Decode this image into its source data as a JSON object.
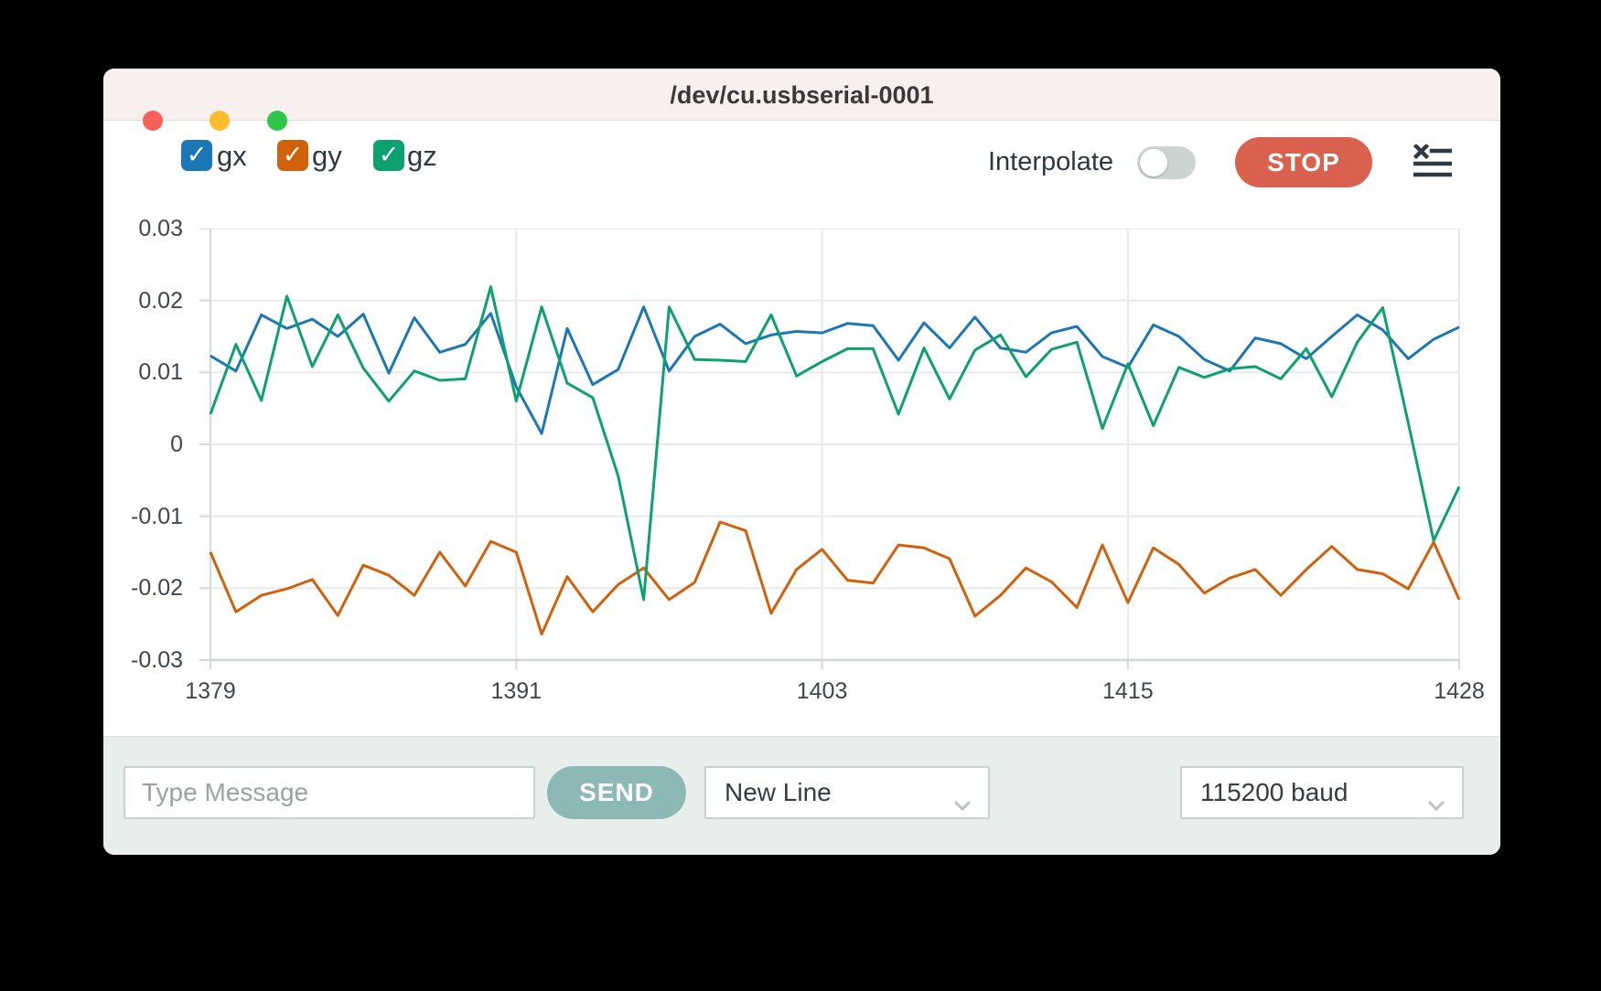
{
  "window": {
    "title": "/dev/cu.usbserial-0001"
  },
  "traffic_lights": [
    "close",
    "minimize",
    "zoom"
  ],
  "legend": [
    {
      "label": "gx",
      "color": "#1b77b5",
      "checked": true
    },
    {
      "label": "gy",
      "color": "#d2610c",
      "checked": true
    },
    {
      "label": "gz",
      "color": "#0ca16e",
      "checked": true
    }
  ],
  "toolbar": {
    "interpolate_label": "Interpolate",
    "interpolate_on": false,
    "stop_label": "STOP",
    "clear_icon": "clear-list-icon"
  },
  "chart_data": {
    "type": "line",
    "xlim": [
      1379,
      1428
    ],
    "ylim": [
      -0.03,
      0.03
    ],
    "grid": true,
    "legend_position": "top-left",
    "x_tick_values": [
      1379,
      1391,
      1403,
      1415,
      1428
    ],
    "x_tick_labels": [
      "1379",
      "1391",
      "1403",
      "1415",
      "1428"
    ],
    "y_tick_values": [
      0.03,
      0.02,
      0.01,
      0,
      -0.01,
      -0.02,
      -0.03
    ],
    "y_tick_labels": [
      "0.03",
      "0.02",
      "0.01",
      "0",
      "-0.01",
      "-0.02",
      "-0.03"
    ],
    "x_start": 1379,
    "x_step": 1,
    "series": [
      {
        "name": "gx",
        "color": "#1b77b5",
        "values": [
          0.0123,
          0.0102,
          0.018,
          0.0161,
          0.0174,
          0.015,
          0.0181,
          0.0099,
          0.0176,
          0.0128,
          0.0139,
          0.0182,
          0.008,
          0.0015,
          0.0161,
          0.0083,
          0.0104,
          0.0191,
          0.0102,
          0.015,
          0.0167,
          0.014,
          0.0152,
          0.0157,
          0.0155,
          0.0168,
          0.0165,
          0.0117,
          0.0169,
          0.0134,
          0.0177,
          0.0134,
          0.0128,
          0.0155,
          0.0164,
          0.0122,
          0.0107,
          0.0166,
          0.015,
          0.0118,
          0.0102,
          0.0148,
          0.014,
          0.0119,
          0.015,
          0.018,
          0.0159,
          0.0119,
          0.0146,
          0.0163
        ]
      },
      {
        "name": "gy",
        "color": "#d2610c",
        "values": [
          -0.015,
          -0.0233,
          -0.021,
          -0.0201,
          -0.0188,
          -0.0238,
          -0.0168,
          -0.0182,
          -0.021,
          -0.015,
          -0.0197,
          -0.0135,
          -0.015,
          -0.0264,
          -0.0184,
          -0.0233,
          -0.0195,
          -0.0172,
          -0.0216,
          -0.0192,
          -0.0108,
          -0.012,
          -0.0235,
          -0.0174,
          -0.0146,
          -0.0189,
          -0.0193,
          -0.014,
          -0.0144,
          -0.0159,
          -0.0239,
          -0.021,
          -0.0172,
          -0.0191,
          -0.0227,
          -0.014,
          -0.022,
          -0.0144,
          -0.0167,
          -0.0207,
          -0.0186,
          -0.0174,
          -0.021,
          -0.0174,
          -0.0142,
          -0.0174,
          -0.018,
          -0.0201,
          -0.0136,
          -0.0216
        ]
      },
      {
        "name": "gz",
        "color": "#0ca16e",
        "values": [
          0.0042,
          0.0139,
          0.0061,
          0.0206,
          0.0108,
          0.018,
          0.0106,
          0.006,
          0.0102,
          0.0089,
          0.0091,
          0.0219,
          0.006,
          0.0191,
          0.0085,
          0.0065,
          -0.0044,
          -0.0216,
          0.0191,
          0.0118,
          0.0117,
          0.0115,
          0.018,
          0.0095,
          0.0115,
          0.0133,
          0.0133,
          0.0042,
          0.0134,
          0.0063,
          0.0131,
          0.0152,
          0.0094,
          0.0132,
          0.0142,
          0.0022,
          0.0112,
          0.0026,
          0.0107,
          0.0093,
          0.0105,
          0.0108,
          0.0091,
          0.0133,
          0.0066,
          0.0142,
          0.019,
          0.003,
          -0.0134,
          -0.0059
        ]
      }
    ]
  },
  "bottom_bar": {
    "message_placeholder": "Type Message",
    "send_label": "SEND",
    "line_ending_selected": "New Line",
    "baud_selected": "115200 baud"
  }
}
